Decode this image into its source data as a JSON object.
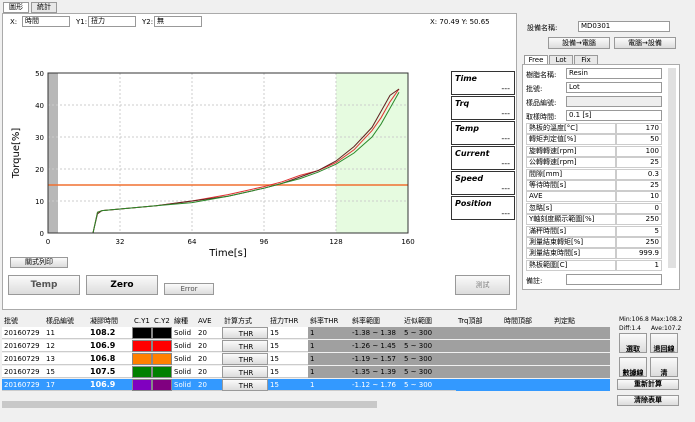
{
  "tabs": [
    "圖形",
    "統計"
  ],
  "selectors": [
    {
      "label": "X:",
      "value": "時間"
    },
    {
      "label": "Y1:",
      "value": "扭力"
    },
    {
      "label": "Y2:",
      "value": "無"
    }
  ],
  "cursor": "X: 70.49  Y: 50.65",
  "chart_data": {
    "type": "line",
    "xlabel": "Time[s]",
    "ylabel": "Torque[%]",
    "x": [
      0,
      20,
      22,
      24,
      32,
      48,
      64,
      80,
      96,
      104,
      112,
      120,
      128,
      136,
      144,
      148,
      152,
      156
    ],
    "series": [
      {
        "name": "12",
        "color": "#e03030",
        "values": [
          0,
          0,
          6.5,
          7,
          7.5,
          8.5,
          10,
          12,
          14.5,
          16,
          18,
          19.5,
          22,
          26,
          32,
          36,
          41,
          45
        ]
      },
      {
        "name": "11",
        "color": "#602020",
        "values": [
          0,
          0,
          6,
          7,
          7.5,
          8.5,
          10,
          11.5,
          14,
          15.5,
          17.5,
          19.5,
          22.5,
          27,
          33,
          38,
          43,
          45
        ]
      },
      {
        "name": "15",
        "color": "#2a8a2a",
        "values": [
          0,
          0,
          6.5,
          7,
          7.5,
          8.5,
          9.5,
          11.5,
          14,
          15.5,
          17,
          19,
          21.5,
          25,
          30,
          34,
          39,
          44
        ]
      }
    ],
    "xlim": [
      0,
      160
    ],
    "ylim": [
      0,
      50
    ],
    "xticks": [
      0,
      32,
      64,
      96,
      128,
      160
    ],
    "yticks": [
      0,
      10,
      20,
      30,
      40,
      50
    ],
    "threshold": 15,
    "threshold_color": "#f07030",
    "shade": [
      128,
      160
    ],
    "shade_color": "#e6fbe0",
    "grid": true
  },
  "readings": [
    {
      "label": "Time",
      "value": "---"
    },
    {
      "label": "Trq",
      "value": "---"
    },
    {
      "label": "Temp",
      "value": "---"
    },
    {
      "label": "Current",
      "value": "---"
    },
    {
      "label": "Speed",
      "value": "---"
    },
    {
      "label": "Position",
      "value": "---"
    }
  ],
  "buttons": {
    "print": "關式列印",
    "temp": "Temp",
    "zero": "Zero",
    "error": "Error",
    "test": "測試"
  },
  "device": {
    "label": "設備名稱:",
    "value": "MD0301",
    "to_pc": "設備→電腦",
    "to_dev": "電腦→設備"
  },
  "subtabs": [
    "Free",
    "Lot",
    "Fix"
  ],
  "fields": [
    {
      "label": "樹脂名稱:",
      "value": "Resin"
    },
    {
      "label": "批號:",
      "value": "Lot"
    },
    {
      "label": "樣品編號:"
    },
    {
      "label": "取樣時間:",
      "value": "0.1 [s]"
    }
  ],
  "params": [
    [
      "熱板的溫度[°C]",
      "170"
    ],
    [
      "轉矩判定值[%]",
      "50"
    ],
    [
      "旋轉轉速[rpm]",
      "100"
    ],
    [
      "公轉轉速[rpm]",
      "25"
    ],
    [
      "間隙[mm]",
      "0.3"
    ],
    [
      "等待時間[s]",
      "25"
    ],
    [
      "AVE",
      "10"
    ],
    [
      "忽略[s]",
      "0"
    ],
    [
      "Y軸刻度顯示範圍[%]",
      "250"
    ],
    [
      "滿秤時間[s]",
      "5"
    ],
    [
      "測量結束轉矩[%]",
      "250"
    ],
    [
      "測量結束時間[s]",
      "999.9"
    ],
    [
      "熱板範圍[C]",
      "1"
    ]
  ],
  "note_label": "備註:",
  "table": {
    "headers": [
      "批號",
      "樣品編號",
      "凝膠時間",
      "C.Y1",
      "C.Y2",
      "線種",
      "AVE",
      "計算方式",
      "扭力THR",
      "斜率THR",
      "斜率範圍",
      "近似範圍",
      "Trq頂部",
      "時間頂部",
      "判定點"
    ],
    "rows": [
      [
        "20160729",
        "11",
        "108.2",
        "#000000",
        "#000000",
        "Solid",
        "20",
        "THR",
        "15",
        "1",
        "-1.38 ~ 1.38",
        "5 ~ 300"
      ],
      [
        "20160729",
        "12",
        "106.9",
        "#ff0000",
        "#ff0000",
        "Solid",
        "20",
        "THR",
        "15",
        "1",
        "-1.26 ~ 1.45",
        "5 ~ 300"
      ],
      [
        "20160729",
        "13",
        "106.8",
        "#ff8000",
        "#ff8000",
        "Solid",
        "20",
        "THR",
        "15",
        "1",
        "-1.19 ~ 1.57",
        "5 ~ 300"
      ],
      [
        "20160729",
        "15",
        "107.5",
        "#008000",
        "#008000",
        "Solid",
        "20",
        "THR",
        "15",
        "1",
        "-1.35 ~ 1.39",
        "5 ~ 300"
      ],
      [
        "20160729",
        "17",
        "106.9",
        "#8000c0",
        "#800080",
        "Solid",
        "20",
        "THR",
        "15",
        "1",
        "-1.12 ~ 1.76",
        "5 ~ 300"
      ]
    ],
    "selected": 4
  },
  "stats": [
    "Min:106.8",
    "Max:108.2",
    "Diff:1.4",
    "Ave:107.2"
  ],
  "actions": [
    "選取",
    "退回線",
    "數據線",
    "清",
    "重新計算",
    "清除表單"
  ]
}
